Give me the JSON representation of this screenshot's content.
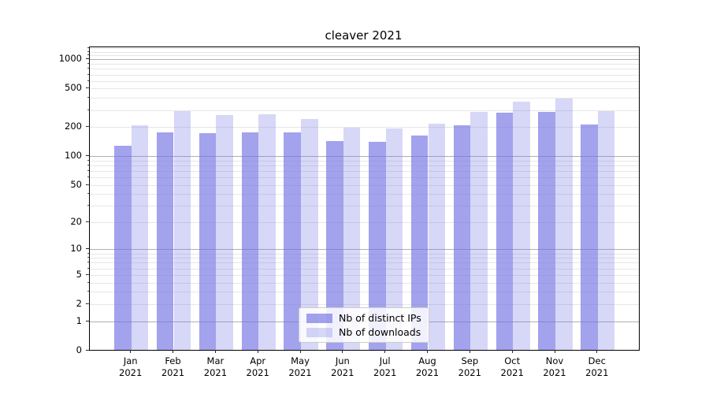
{
  "title": "cleaver 2021",
  "chart_data": {
    "type": "bar",
    "title": "cleaver 2021",
    "categories": [
      "Jan 2021",
      "Feb 2021",
      "Mar 2021",
      "Apr 2021",
      "May 2021",
      "Jun 2021",
      "Jul 2021",
      "Aug 2021",
      "Sep 2021",
      "Oct 2021",
      "Nov 2021",
      "Dec 2021"
    ],
    "series": [
      {
        "name": "Nb of distinct IPs",
        "values": [
          127,
          174,
          170,
          176,
          174,
          141,
          139,
          162,
          206,
          278,
          286,
          212
        ]
      },
      {
        "name": "Nb of downloads",
        "values": [
          208,
          290,
          266,
          268,
          240,
          196,
          190,
          214,
          285,
          365,
          391,
          290
        ]
      }
    ],
    "yscale": "log1p",
    "yticks": [
      0,
      1,
      2,
      5,
      10,
      20,
      50,
      100,
      200,
      500,
      1000
    ],
    "ylim": [
      0,
      1320
    ],
    "grid": true,
    "legend_position": "lower center"
  },
  "legend": {
    "items": [
      {
        "label": "Nb of distinct IPs"
      },
      {
        "label": "Nb of downloads"
      }
    ]
  },
  "colors": {
    "bar_distinct_ips": "rgba(112,112,228,0.65)",
    "bar_downloads": "rgba(112,112,228,0.28)",
    "grid_major": "#b0b0b0",
    "grid_minor": "#e7e7e7",
    "spine": "#000000",
    "text": "#000000"
  }
}
